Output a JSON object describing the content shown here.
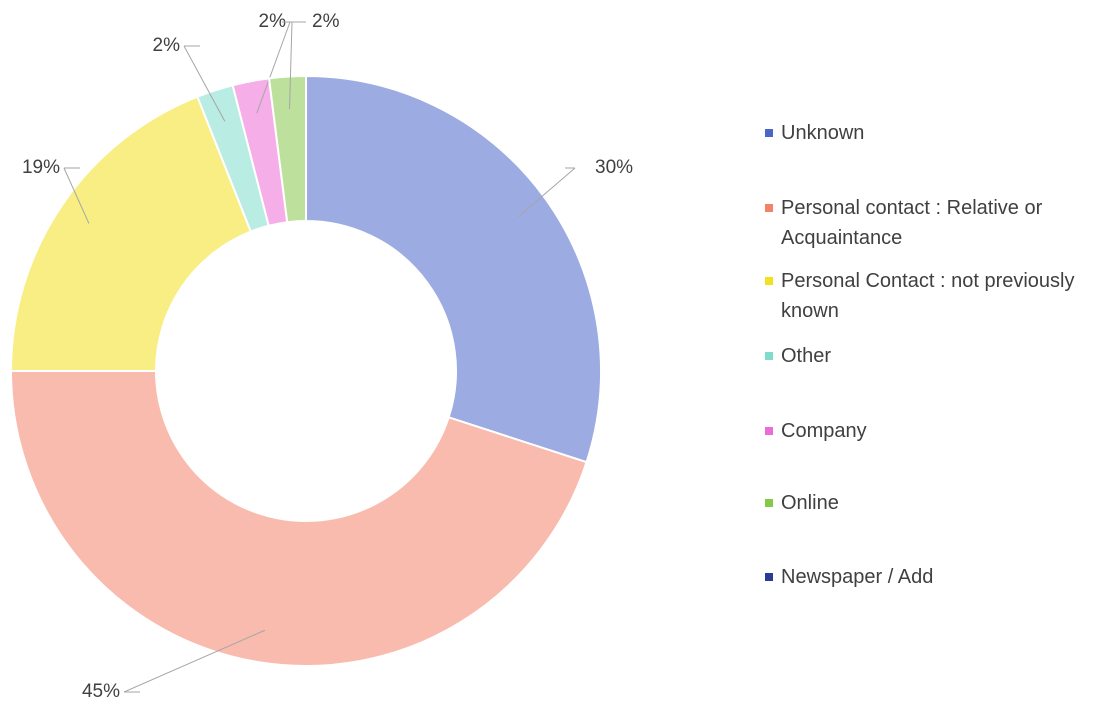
{
  "chart_data": {
    "type": "donut",
    "categories": [
      "Unknown",
      "Personal contact : Relative or Acquaintance",
      "Personal Contact : not previously known",
      "Other",
      "Company",
      "Online",
      "Newspaper / Add"
    ],
    "values": [
      30,
      45,
      19,
      2,
      2,
      2,
      0
    ],
    "value_labels": [
      "30%",
      "45%",
      "19%",
      "2%",
      "2%",
      "2%",
      null
    ],
    "colors": [
      "#4a66c9",
      "#f2836b",
      "#f3e01e",
      "#7fdccb",
      "#ec6bd6",
      "#86c94a",
      "#2c3d8f"
    ],
    "legend": "right"
  }
}
